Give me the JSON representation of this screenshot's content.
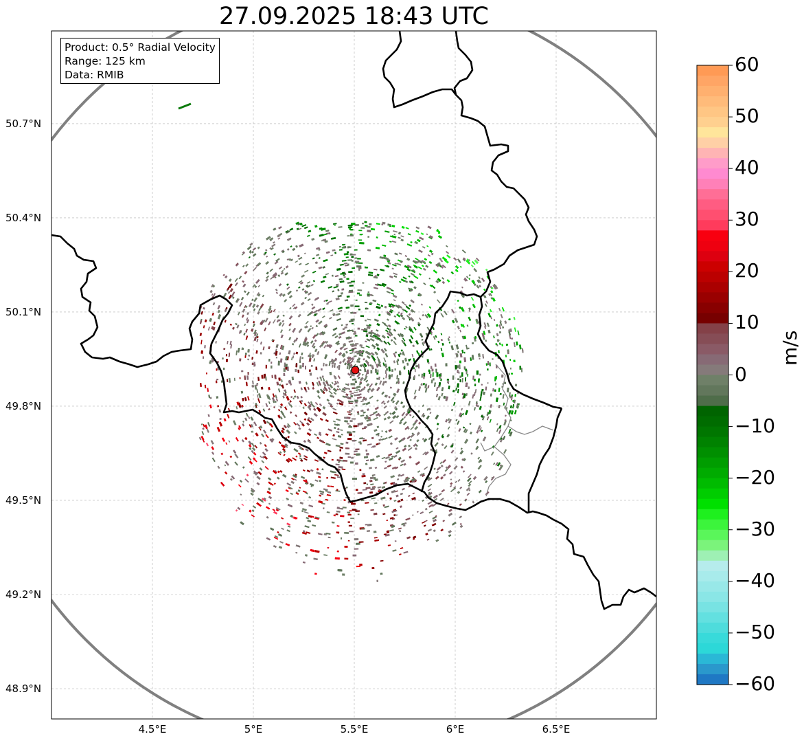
{
  "title": "27.09.2025 18:43 UTC",
  "info_box": {
    "product": "Product: 0.5° Radial Velocity",
    "range": "Range: 125 km",
    "source": "Data: RMIB"
  },
  "map": {
    "lon_range": [
      4.0,
      7.0
    ],
    "lat_range": [
      48.8,
      51.0
    ],
    "radar_site": {
      "lon": 5.505,
      "lat": 49.915
    },
    "range_km": 125,
    "lat_ticks": [
      {
        "value": 50.7,
        "label": "50.7°N"
      },
      {
        "value": 50.4,
        "label": "50.4°N"
      },
      {
        "value": 50.1,
        "label": "50.1°N"
      },
      {
        "value": 49.8,
        "label": "49.8°N"
      },
      {
        "value": 49.5,
        "label": "49.5°N"
      },
      {
        "value": 49.2,
        "label": "49.2°N"
      },
      {
        "value": 48.9,
        "label": "48.9°N"
      }
    ],
    "lon_ticks": [
      {
        "value": 4.5,
        "label": "4.5°E"
      },
      {
        "value": 5.0,
        "label": "5°E"
      },
      {
        "value": 5.5,
        "label": "5.5°E"
      },
      {
        "value": 6.0,
        "label": "6°E"
      },
      {
        "value": 6.5,
        "label": "6.5°E"
      }
    ],
    "colors": {
      "range_ring": "#808080",
      "border": "#000000",
      "radar_marker": "#e31010",
      "grid": "#b0b0b0"
    }
  },
  "colorbar": {
    "unit": "m/s",
    "min": -60,
    "max": 60,
    "ticks": [
      {
        "value": 60,
        "label": "60"
      },
      {
        "value": 50,
        "label": "50"
      },
      {
        "value": 40,
        "label": "40"
      },
      {
        "value": 30,
        "label": "30"
      },
      {
        "value": 20,
        "label": "20"
      },
      {
        "value": 10,
        "label": "10"
      },
      {
        "value": 0,
        "label": "0"
      },
      {
        "value": -10,
        "label": "−10"
      },
      {
        "value": -20,
        "label": "−20"
      },
      {
        "value": -30,
        "label": "−30"
      },
      {
        "value": -40,
        "label": "−40"
      },
      {
        "value": -50,
        "label": "−50"
      },
      {
        "value": -60,
        "label": "−60"
      }
    ],
    "bands": [
      {
        "from": 58,
        "to": 60,
        "color": "#ff9a55"
      },
      {
        "from": 56,
        "to": 58,
        "color": "#ffa565"
      },
      {
        "from": 54,
        "to": 56,
        "color": "#ffb06f"
      },
      {
        "from": 52,
        "to": 54,
        "color": "#ffbb7a"
      },
      {
        "from": 50,
        "to": 52,
        "color": "#ffc684"
      },
      {
        "from": 48,
        "to": 50,
        "color": "#ffd08f"
      },
      {
        "from": 46,
        "to": 48,
        "color": "#ffe59b"
      },
      {
        "from": 44,
        "to": 46,
        "color": "#ffd0a6"
      },
      {
        "from": 42,
        "to": 44,
        "color": "#ffb4b4"
      },
      {
        "from": 40,
        "to": 42,
        "color": "#ff9cc9"
      },
      {
        "from": 38,
        "to": 40,
        "color": "#ff8ad0"
      },
      {
        "from": 36,
        "to": 38,
        "color": "#ff80b8"
      },
      {
        "from": 34,
        "to": 36,
        "color": "#ff6e96"
      },
      {
        "from": 32,
        "to": 34,
        "color": "#ff5c82"
      },
      {
        "from": 30,
        "to": 32,
        "color": "#ff4f70"
      },
      {
        "from": 28,
        "to": 30,
        "color": "#ff3b5c"
      },
      {
        "from": 26,
        "to": 28,
        "color": "#f80010"
      },
      {
        "from": 24,
        "to": 26,
        "color": "#ee0010"
      },
      {
        "from": 22,
        "to": 24,
        "color": "#dd0010"
      },
      {
        "from": 20,
        "to": 22,
        "color": "#cc0000"
      },
      {
        "from": 18,
        "to": 20,
        "color": "#bb0000"
      },
      {
        "from": 16,
        "to": 18,
        "color": "#aa0000"
      },
      {
        "from": 14,
        "to": 16,
        "color": "#990000"
      },
      {
        "from": 12,
        "to": 14,
        "color": "#880000"
      },
      {
        "from": 10,
        "to": 12,
        "color": "#770000"
      },
      {
        "from": 8,
        "to": 10,
        "color": "#844148"
      },
      {
        "from": 6,
        "to": 8,
        "color": "#864d56"
      },
      {
        "from": 4,
        "to": 6,
        "color": "#8a5a66"
      },
      {
        "from": 2,
        "to": 4,
        "color": "#876a75"
      },
      {
        "from": 0,
        "to": 2,
        "color": "#857a7a"
      },
      {
        "from": -2,
        "to": 0,
        "color": "#6f8068"
      },
      {
        "from": -4,
        "to": -2,
        "color": "#62775c"
      },
      {
        "from": -6,
        "to": -4,
        "color": "#4f6d4a"
      },
      {
        "from": -8,
        "to": -6,
        "color": "#006400"
      },
      {
        "from": -10,
        "to": -8,
        "color": "#006c00"
      },
      {
        "from": -12,
        "to": -10,
        "color": "#007600"
      },
      {
        "from": -14,
        "to": -12,
        "color": "#008200"
      },
      {
        "from": -16,
        "to": -14,
        "color": "#008f00"
      },
      {
        "from": -18,
        "to": -16,
        "color": "#009d00"
      },
      {
        "from": -20,
        "to": -18,
        "color": "#00ab00"
      },
      {
        "from": -22,
        "to": -20,
        "color": "#00bb00"
      },
      {
        "from": -24,
        "to": -22,
        "color": "#00cd00"
      },
      {
        "from": -26,
        "to": -24,
        "color": "#00e000"
      },
      {
        "from": -28,
        "to": -26,
        "color": "#1ef01e"
      },
      {
        "from": -30,
        "to": -28,
        "color": "#3cf43c"
      },
      {
        "from": -32,
        "to": -30,
        "color": "#5af65a"
      },
      {
        "from": -34,
        "to": -32,
        "color": "#7bf37b"
      },
      {
        "from": -36,
        "to": -34,
        "color": "#9ef0b4"
      },
      {
        "from": -38,
        "to": -36,
        "color": "#b6ecec"
      },
      {
        "from": -40,
        "to": -38,
        "color": "#a8ebeb"
      },
      {
        "from": -42,
        "to": -40,
        "color": "#98e8e8"
      },
      {
        "from": -44,
        "to": -42,
        "color": "#8ae6e6"
      },
      {
        "from": -46,
        "to": -44,
        "color": "#78e3e3"
      },
      {
        "from": -48,
        "to": -46,
        "color": "#63e0e0"
      },
      {
        "from": -50,
        "to": -48,
        "color": "#4edcdc"
      },
      {
        "from": -52,
        "to": -50,
        "color": "#38dada"
      },
      {
        "from": -54,
        "to": -52,
        "color": "#2cd8d8"
      },
      {
        "from": -56,
        "to": -54,
        "color": "#2ab8d6"
      },
      {
        "from": -58,
        "to": -56,
        "color": "#2a98cc"
      },
      {
        "from": -60,
        "to": -58,
        "color": "#1f78c4"
      }
    ]
  }
}
